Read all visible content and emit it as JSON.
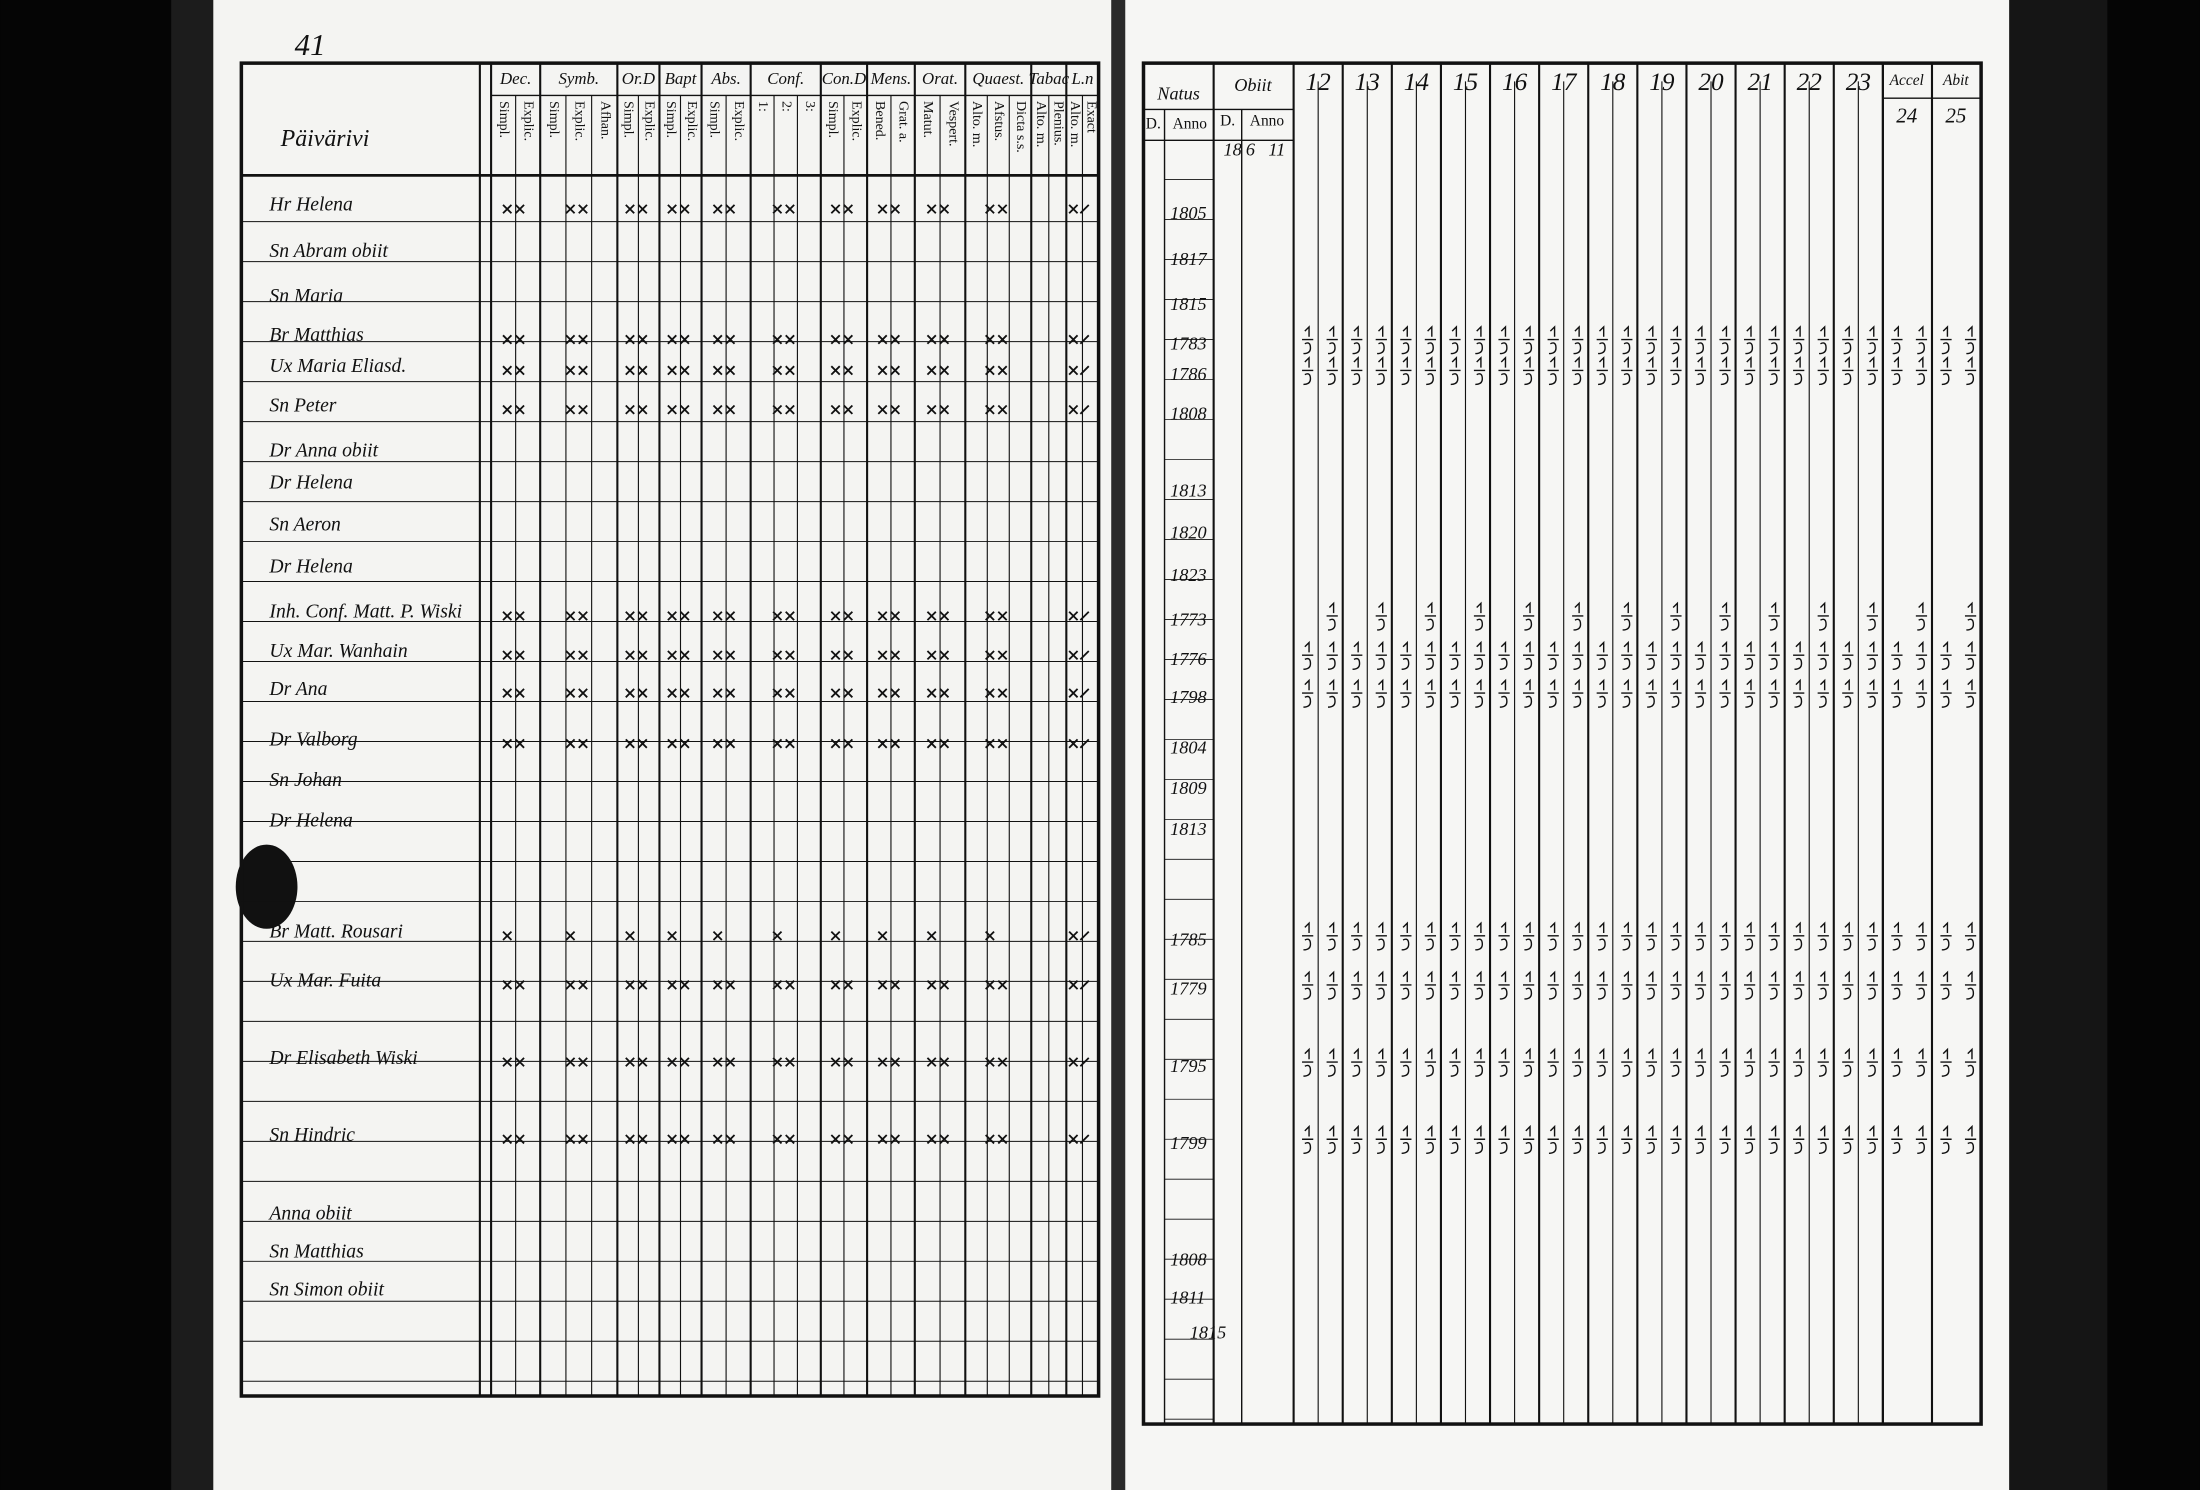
{
  "page_number": "41",
  "village": "Päivärivi",
  "left_columns": [
    {
      "label": "Dec.",
      "sub": [
        "Simpl.",
        "Explic."
      ]
    },
    {
      "label": "Symb.",
      "sub": [
        "Simpl.",
        "Explic.",
        "Afhan."
      ]
    },
    {
      "label": "Or.D",
      "sub": [
        "Simpl.",
        "Explic."
      ]
    },
    {
      "label": "Bapt",
      "sub": [
        "Simpl.",
        "Explic."
      ]
    },
    {
      "label": "Abs.",
      "sub": [
        "Simpl.",
        "Explic."
      ]
    },
    {
      "label": "Conf.",
      "sub": [
        "1:",
        "2:",
        "3:"
      ]
    },
    {
      "label": "Con.D",
      "sub": [
        "Simpl.",
        "Explic."
      ]
    },
    {
      "label": "Mens.",
      "sub": [
        "Bened.",
        "Grat. a."
      ]
    },
    {
      "label": "Orat.",
      "sub": [
        "Matut.",
        "Vespert."
      ]
    },
    {
      "label": "Quaest.",
      "sub": [
        "Alto. m.",
        "Afstus.",
        "Dicta s.s."
      ]
    },
    {
      "label": "Tabac",
      "sub": [
        "Alto. m.",
        "Plenius."
      ]
    },
    {
      "label": "L.n",
      "sub": [
        "Alto. m.",
        "Exact"
      ]
    }
  ],
  "rows": [
    {
      "name": "Hr Helena",
      "born": "1805"
    },
    {
      "name": "Sn Abram obiit",
      "born": "1817"
    },
    {
      "name": "Sn Maria",
      "born": "1815"
    },
    {
      "name": "Br Matthias",
      "born": "1783"
    },
    {
      "name": "Ux Maria Eliasd.",
      "born": "1786"
    },
    {
      "name": "Sn Peter",
      "born": "1808"
    },
    {
      "name": "Dr Anna obiit"
    },
    {
      "name": "Dr Helena",
      "born": "1813"
    },
    {
      "name": "Sn Aeron",
      "born": "1820"
    },
    {
      "name": "Dr Helena",
      "born": "1823"
    },
    {
      "name": "Inh. Conf. Matt. P. Wiski",
      "born": "1773"
    },
    {
      "name": "Ux Mar. Wanhain",
      "born": "1776"
    },
    {
      "name": "Dr Ana",
      "born": "1798"
    },
    {
      "name": "Dr Valborg",
      "born": "1804"
    },
    {
      "name": "Sn Johan",
      "born": "1809"
    },
    {
      "name": "Dr Helena",
      "born": "1813"
    },
    {
      "name": "Br Matt. Rousari",
      "born": "1785"
    },
    {
      "name": "Ux Mar. Fuita",
      "born": "1779"
    },
    {
      "name": "Dr Elisabeth Wiski",
      "born": "1795"
    },
    {
      "name": "Sn Hindric",
      "born": "1799"
    },
    {
      "name": "Anna obiit"
    },
    {
      "name": "Sn Matthias",
      "born": "1808"
    },
    {
      "name": "Sn Simon obiit",
      "born": "1811"
    },
    {
      "born": "1815"
    }
  ],
  "right_header": {
    "natus": {
      "label": "Natus",
      "sub": [
        "D.",
        "Anno"
      ]
    },
    "obiit": {
      "label": "Obiit",
      "sub": [
        "D.",
        "Anno"
      ],
      "entry": [
        "18",
        "6",
        "11"
      ]
    },
    "years": [
      "12",
      "13",
      "14",
      "15",
      "16",
      "17",
      "18",
      "19",
      "20",
      "21",
      "22",
      "23"
    ],
    "accel": {
      "label": "Accel",
      "number": "24"
    },
    "abit": {
      "label": "Abit",
      "number": "25"
    }
  }
}
